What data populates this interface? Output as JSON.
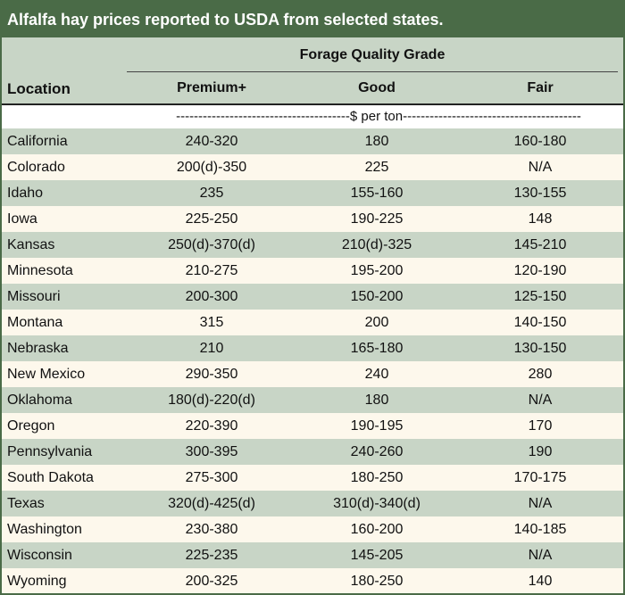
{
  "title": "Alfalfa hay prices reported to USDA from selected states.",
  "header": {
    "group_label": "Forage Quality Grade",
    "location_label": "Location",
    "columns": [
      "Premium+",
      "Good",
      "Fair"
    ]
  },
  "units_row": "---------------------------------------$ per ton----------------------------------------",
  "colors": {
    "title_bg": "#4a6b47",
    "shade": "#c8d5c6",
    "cream": "#fdf8ec"
  },
  "rows": [
    {
      "location": "California",
      "premium": "240-320",
      "good": "180",
      "fair": "160-180"
    },
    {
      "location": "Colorado",
      "premium": "200(d)-350",
      "good": "225",
      "fair": "N/A"
    },
    {
      "location": "Idaho",
      "premium": "235",
      "good": "155-160",
      "fair": "130-155"
    },
    {
      "location": "Iowa",
      "premium": "225-250",
      "good": "190-225",
      "fair": "148"
    },
    {
      "location": "Kansas",
      "premium": "250(d)-370(d)",
      "good": "210(d)-325",
      "fair": "145-210"
    },
    {
      "location": "Minnesota",
      "premium": "210-275",
      "good": "195-200",
      "fair": "120-190"
    },
    {
      "location": "Missouri",
      "premium": "200-300",
      "good": "150-200",
      "fair": "125-150"
    },
    {
      "location": "Montana",
      "premium": "315",
      "good": "200",
      "fair": "140-150"
    },
    {
      "location": "Nebraska",
      "premium": "210",
      "good": "165-180",
      "fair": "130-150"
    },
    {
      "location": "New Mexico",
      "premium": "290-350",
      "good": "240",
      "fair": "280"
    },
    {
      "location": "Oklahoma",
      "premium": "180(d)-220(d)",
      "good": "180",
      "fair": "N/A"
    },
    {
      "location": "Oregon",
      "premium": "220-390",
      "good": "190-195",
      "fair": "170"
    },
    {
      "location": "Pennsylvania",
      "premium": "300-395",
      "good": "240-260",
      "fair": "190"
    },
    {
      "location": "South Dakota",
      "premium": "275-300",
      "good": "180-250",
      "fair": "170-175"
    },
    {
      "location": "Texas",
      "premium": "320(d)-425(d)",
      "good": "310(d)-340(d)",
      "fair": "N/A"
    },
    {
      "location": "Washington",
      "premium": "230-380",
      "good": "160-200",
      "fair": "140-185"
    },
    {
      "location": "Wisconsin",
      "premium": "225-235",
      "good": "145-205",
      "fair": "N/A"
    },
    {
      "location": "Wyoming",
      "premium": "200-325",
      "good": "180-250",
      "fair": "140"
    }
  ]
}
